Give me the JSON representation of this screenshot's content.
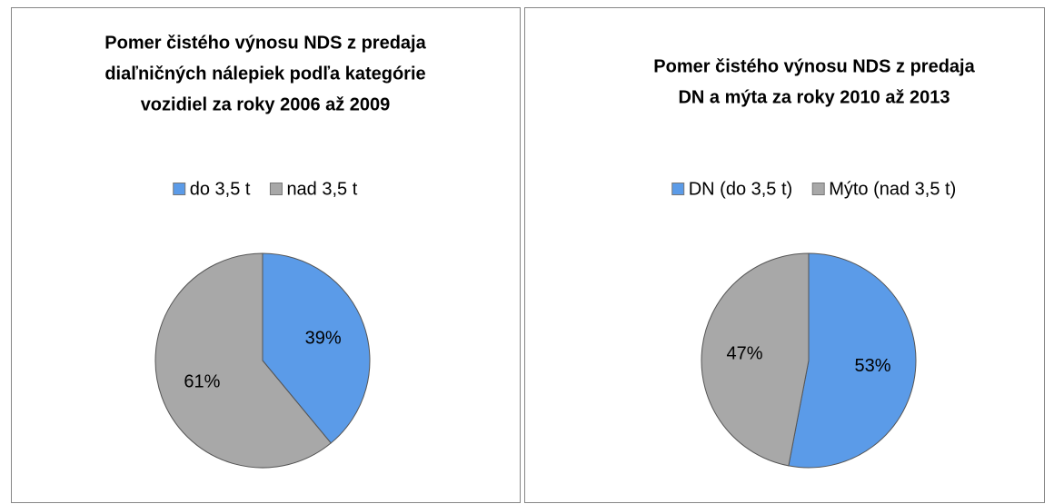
{
  "chart_data": [
    {
      "type": "pie",
      "title": [
        "Pomer čistého výnosu NDS z predaja",
        "diaľničných nálepiek podľa kategórie",
        "vozidiel za roky 2006 až 2009"
      ],
      "categories": [
        "do 3,5 t",
        "nad 3,5 t"
      ],
      "values": [
        39,
        61
      ],
      "value_labels": [
        "39%",
        "61%"
      ],
      "colors": [
        "#5b9be8",
        "#a8a8a8"
      ],
      "legend": "top"
    },
    {
      "type": "pie",
      "title": [
        "Pomer čistého výnosu NDS z predaja",
        "DN a mýta za roky 2010 až 2013"
      ],
      "categories": [
        "DN (do 3,5 t)",
        "Mýto (nad 3,5 t)"
      ],
      "values": [
        53,
        47
      ],
      "value_labels": [
        "53%",
        "47%"
      ],
      "colors": [
        "#5b9be8",
        "#a8a8a8"
      ],
      "legend": "top"
    }
  ]
}
